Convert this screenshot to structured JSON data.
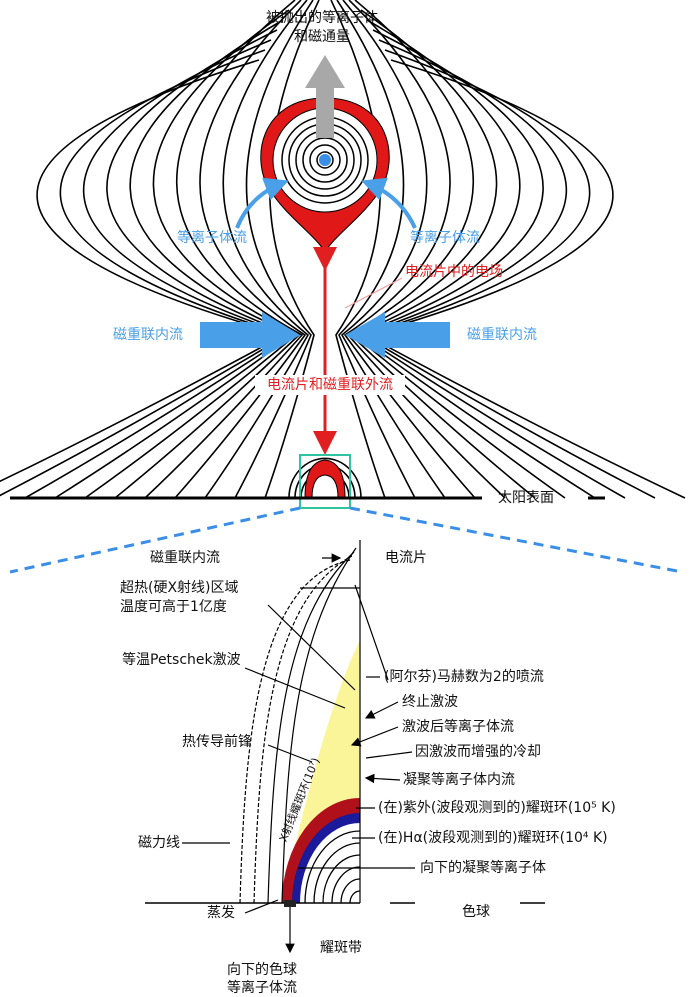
{
  "top": {
    "ejected": [
      "被抛出的等离子体",
      "和磁通量"
    ],
    "plasma_flow_left": "等离子体流",
    "plasma_flow_right": "等离子体流",
    "electric_field": "电流片中的电场",
    "inflow_left": "磁重联内流",
    "inflow_right": "磁重联内流",
    "outflow": "电流片和磁重联外流",
    "surface": "太阳表面"
  },
  "bottom": {
    "inflow": "磁重联内流",
    "current_sheet": "电流片",
    "superhot": [
      "超热(硬X射线)区域",
      "温度可高于1亿度"
    ],
    "petschek": "等温Petschek激波",
    "jet": "(阿尔芬)马赫数为2的喷流",
    "termination": "终止激波",
    "post_shock": "激波后等离子体流",
    "cooling": "因激波而增强的冷却",
    "conduction": "热传导前锋",
    "condensation": "凝聚等离子体内流",
    "uv_loop": "(在)紫外(波段观测到的)耀斑环(10⁵ K)",
    "field_lines": "磁力线",
    "ha_loop": "(在)Hα(波段观测到的)耀斑环(10⁴ K)",
    "xray_loop": "X射线耀斑环(10⁷)",
    "downflow": "向下的凝聚等离子体",
    "evaporation": "蒸发",
    "chromosphere": "色球",
    "ribbon": "耀斑带",
    "chromo_downflow": [
      "向下的色球",
      "等离子体流"
    ]
  }
}
